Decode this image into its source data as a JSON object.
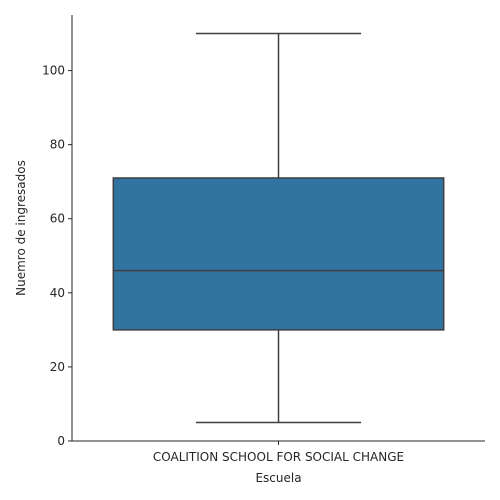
{
  "chart_data": {
    "type": "box",
    "title": "",
    "xlabel": "Escuela",
    "ylabel": "Nuemro de ingresados",
    "categories": [
      "COALITION SCHOOL FOR SOCIAL CHANGE"
    ],
    "boxes": [
      {
        "category": "COALITION SCHOOL FOR SOCIAL CHANGE",
        "whisker_low": 5,
        "q1": 30,
        "median": 46,
        "q3": 71,
        "whisker_high": 110
      }
    ],
    "ylim": [
      0,
      115
    ],
    "yticks": [
      0,
      20,
      40,
      60,
      80,
      100
    ],
    "grid": false,
    "colors": {
      "box_fill": "#3274a1",
      "line": "#3f3f3f",
      "axis": "#262626"
    }
  }
}
